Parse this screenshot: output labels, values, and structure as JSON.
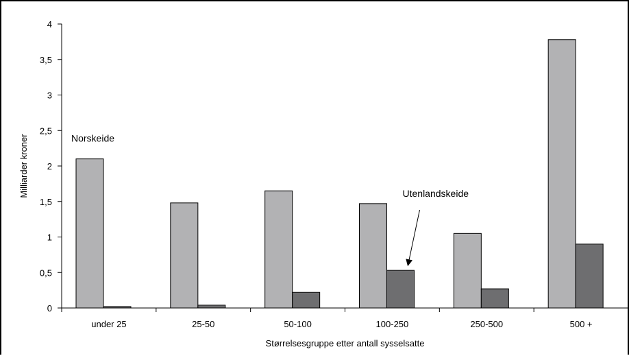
{
  "chart_data": {
    "type": "bar",
    "categories": [
      "under 25",
      "25-50",
      "50-100",
      "100-250",
      "250-500",
      "500 +"
    ],
    "series": [
      {
        "name": "Norskeide",
        "values": [
          2.1,
          1.48,
          1.65,
          1.47,
          1.05,
          3.78
        ],
        "color": "#b2b2b4"
      },
      {
        "name": "Utenlandskeide",
        "values": [
          0.02,
          0.04,
          0.22,
          0.53,
          0.27,
          0.9
        ],
        "color": "#6e6e70"
      }
    ],
    "xlabel": "Størrelsesgruppe etter antall sysselsatte",
    "ylabel": "Milliarder kroner",
    "ylim": [
      0,
      4
    ],
    "yticks": [
      0,
      0.5,
      1,
      1.5,
      2,
      2.5,
      3,
      3.5,
      4
    ],
    "ytick_labels": [
      "0",
      "0,5",
      "1",
      "1,5",
      "2",
      "2,5",
      "3",
      "3,5",
      "4"
    ],
    "grid": false,
    "legend": "none",
    "annotations": [
      {
        "text": "Norskeide",
        "series": 0,
        "category": 0
      },
      {
        "text": "Utenlandskeide",
        "series": 1,
        "category": 3,
        "arrow": true
      }
    ]
  }
}
